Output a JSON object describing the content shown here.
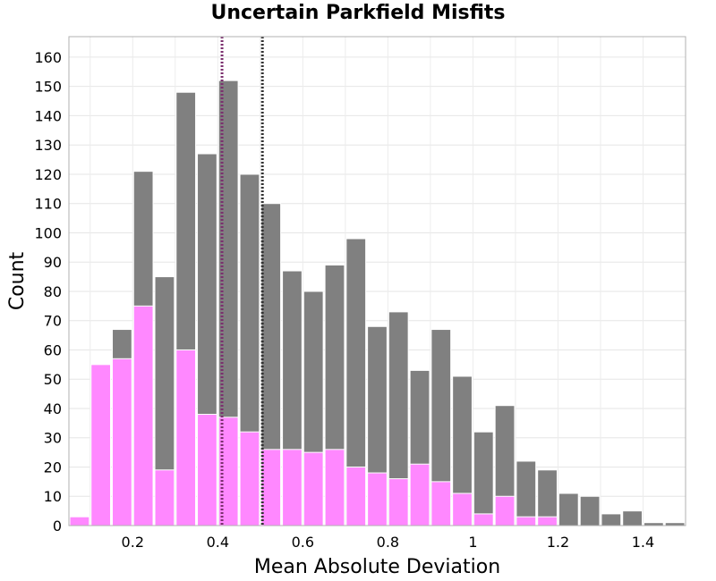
{
  "chart_data": {
    "type": "bar",
    "title": "Uncertain Parkfield Misfits",
    "xlabel": "Mean Absolute Deviation",
    "ylabel": "Count",
    "xlim": [
      0.05,
      1.5
    ],
    "ylim": [
      0,
      167
    ],
    "bin_width": 0.05,
    "grid": true,
    "overlap": "overlaid",
    "x_ticks": [
      0.2,
      0.4,
      0.6,
      0.8,
      1,
      1.2,
      1.4
    ],
    "x_tick_labels": [
      "0.2",
      "0.4",
      "0.6",
      "0.8",
      "1",
      "1.2",
      "1.4"
    ],
    "y_ticks": [
      0,
      10,
      20,
      30,
      40,
      50,
      60,
      70,
      80,
      90,
      100,
      110,
      120,
      130,
      140,
      150,
      160
    ],
    "bin_starts": [
      0.05,
      0.1,
      0.15,
      0.2,
      0.25,
      0.3,
      0.35,
      0.4,
      0.45,
      0.5,
      0.55,
      0.6,
      0.65,
      0.7,
      0.75,
      0.8,
      0.85,
      0.9,
      0.95,
      1.0,
      1.05,
      1.1,
      1.15,
      1.2,
      1.25,
      1.3,
      1.35,
      1.4,
      1.45
    ],
    "series": [
      {
        "color": "#808080",
        "values": [
          0,
          0,
          67,
          121,
          85,
          148,
          127,
          152,
          120,
          110,
          87,
          80,
          89,
          98,
          68,
          73,
          53,
          67,
          51,
          32,
          41,
          22,
          19,
          11,
          10,
          4,
          5,
          1,
          1
        ]
      },
      {
        "color": "#ff88ff",
        "values": [
          3,
          55,
          57,
          75,
          19,
          60,
          38,
          37,
          32,
          26,
          26,
          25,
          26,
          20,
          18,
          16,
          21,
          15,
          11,
          4,
          10,
          3,
          3,
          0,
          0,
          0,
          0,
          0,
          0
        ]
      }
    ],
    "reference_lines": [
      {
        "x": 0.41,
        "color": "#7b2f6e",
        "style": "dotted"
      },
      {
        "x": 0.505,
        "color": "#333333",
        "style": "dotted"
      }
    ]
  }
}
